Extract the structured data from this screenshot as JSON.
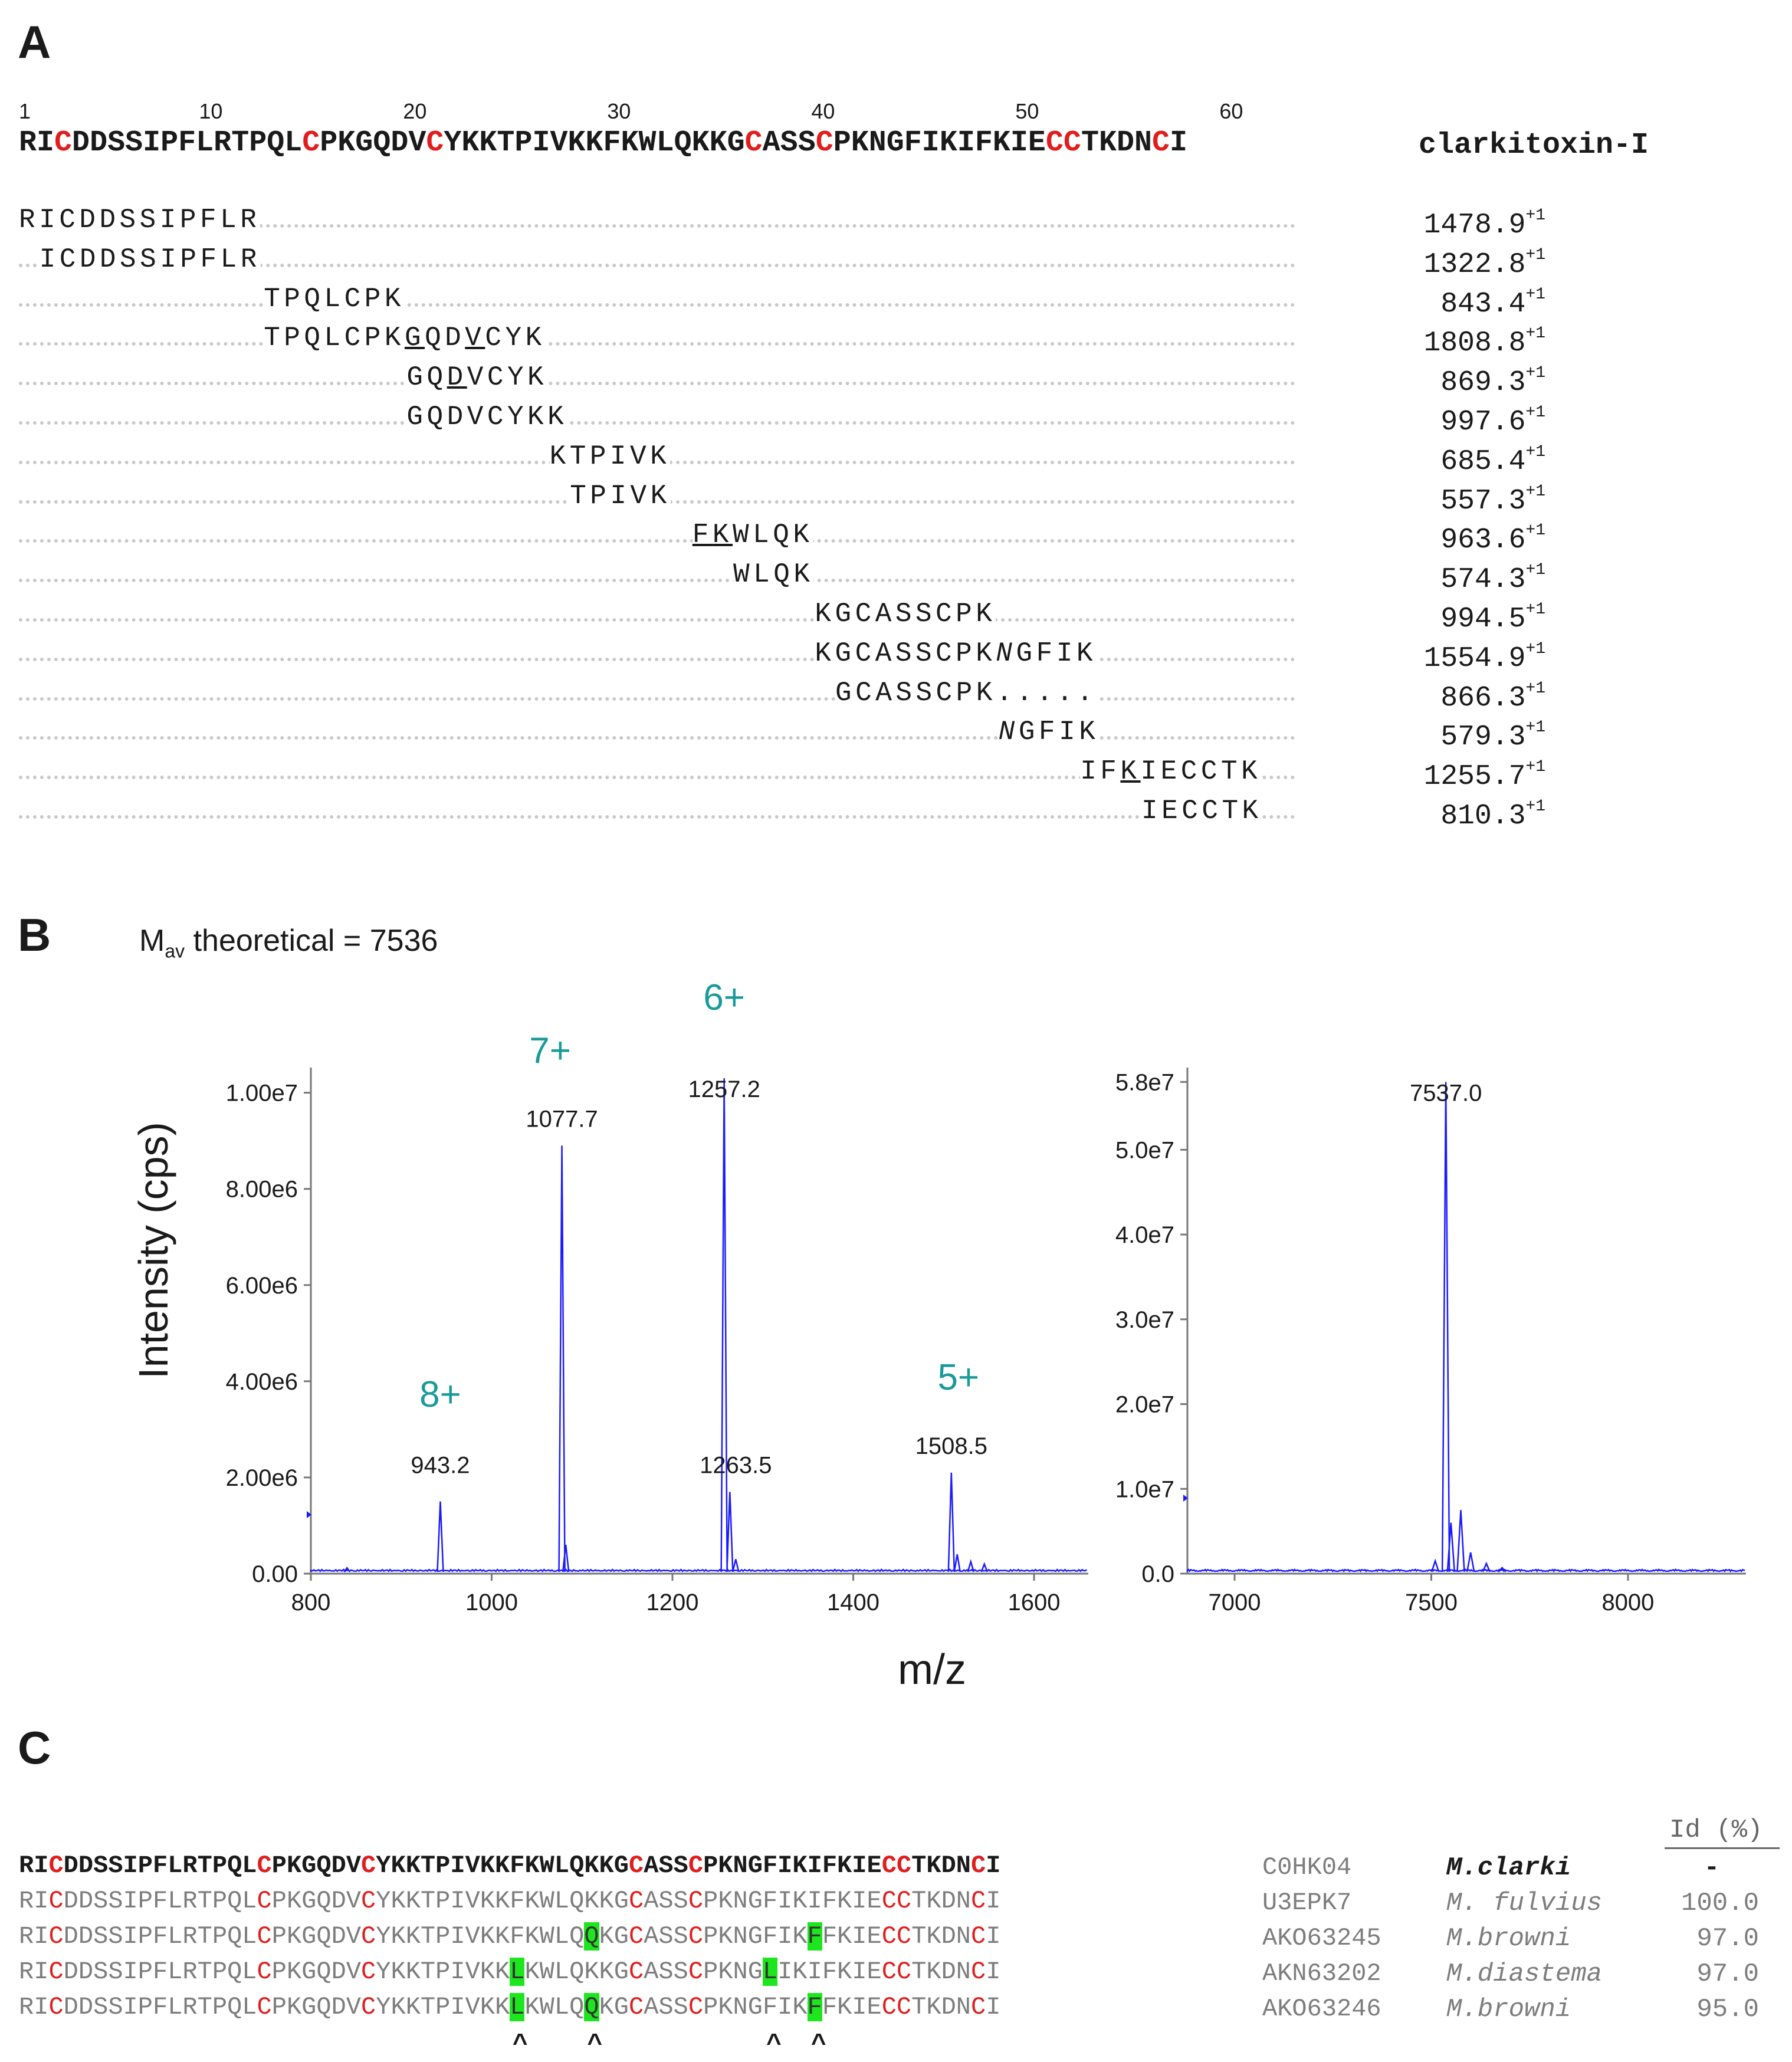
{
  "panelA": {
    "letter": "A",
    "position_labels": [
      "1",
      "10",
      "20",
      "30",
      "40",
      "50",
      "60"
    ],
    "toxin_name": "clarkitoxin-I",
    "full_sequence": "RICDDSSIPFLRTPQLCPKGQDVCYKKTPIVKKFKWLQKKGCASSCPKNGFIKIFKIECCTKDNCI",
    "peptides": [
      {
        "text": "RICDDSSIPFLR",
        "mass": "1478.9",
        "charge": "+1"
      },
      {
        "text": "ICDDSSIPFLR",
        "mass": "1322.8",
        "charge": "+1"
      },
      {
        "text": "TPQLCPK",
        "mass": "843.4",
        "charge": "+1"
      },
      {
        "text": "TPQLCPKGQDVCYK",
        "mass": "1808.8",
        "charge": "+1"
      },
      {
        "text": "GQDVCYK",
        "mass": "869.3",
        "charge": "+1"
      },
      {
        "text": "GQDVCYKK",
        "mass": "997.6",
        "charge": "+1"
      },
      {
        "text": "KTPIVK",
        "mass": "685.4",
        "charge": "+1"
      },
      {
        "text": "TPIVK",
        "mass": "557.3",
        "charge": "+1"
      },
      {
        "text": "FKWLQK",
        "mass": "963.6",
        "charge": "+1"
      },
      {
        "text": "WLQK",
        "mass": "574.3",
        "charge": "+1"
      },
      {
        "text": "KGCASSCPK",
        "mass": "994.5",
        "charge": "+1"
      },
      {
        "text": "KGCASSCPKNGFIK",
        "mass": "1554.9",
        "charge": "+1"
      },
      {
        "text": "GCASSCPK.....",
        "mass": "866.3",
        "charge": "+1"
      },
      {
        "text": "NGFIK",
        "mass": "579.3",
        "charge": "+1"
      },
      {
        "text": "IFKIECCTK",
        "mass": "1255.7",
        "charge": "+1"
      },
      {
        "text": "IECCTK",
        "mass": "810.3",
        "charge": "+1"
      }
    ]
  },
  "panelB": {
    "letter": "B",
    "mav_prefix": "M",
    "mav_sub": "av",
    "mav_rest": " theoretical = 7536",
    "ylabel": "Intensity (cps)",
    "xlabel": "m/z",
    "charge_labels": [
      "8+",
      "7+",
      "6+",
      "5+"
    ],
    "peak_labels": [
      "943.2",
      "1077.7",
      "1257.2",
      "1263.5",
      "1508.5",
      "7537.0"
    ]
  },
  "chart_data": [
    {
      "type": "line",
      "title": "",
      "xlabel": "m/z",
      "ylabel": "Intensity (cps)",
      "xlim": [
        800,
        1660
      ],
      "ylim": [
        0,
        10400000
      ],
      "xticks": [
        "800",
        "1000",
        "1200",
        "1400",
        "1600"
      ],
      "yticks": [
        "0.00",
        "2.00e6",
        "4.00e6",
        "6.00e6",
        "8.00e6",
        "1.00e7"
      ],
      "yticks_values": [
        0,
        2000000,
        4000000,
        6000000,
        8000000,
        10000000
      ],
      "xticks_values": [
        800,
        1000,
        1200,
        1400,
        1600
      ],
      "peaks": [
        {
          "x": 840,
          "y": 120000
        },
        {
          "x": 943.2,
          "y": 1500000
        },
        {
          "x": 1077.7,
          "y": 8900000
        },
        {
          "x": 1082,
          "y": 600000
        },
        {
          "x": 1257.2,
          "y": 10300000
        },
        {
          "x": 1263.5,
          "y": 1700000
        },
        {
          "x": 1270,
          "y": 300000
        },
        {
          "x": 1508.5,
          "y": 2100000
        },
        {
          "x": 1515,
          "y": 400000
        },
        {
          "x": 1530,
          "y": 250000
        },
        {
          "x": 1545,
          "y": 200000
        }
      ],
      "charge_states": [
        {
          "label": "8+",
          "x": 943.2
        },
        {
          "label": "7+",
          "x": 1077.7
        },
        {
          "label": "6+",
          "x": 1257.2
        },
        {
          "label": "5+",
          "x": 1508.5
        }
      ]
    },
    {
      "type": "line",
      "title": "",
      "xlabel": "m/z",
      "ylabel": "",
      "xlim": [
        6880,
        8300
      ],
      "ylim": [
        0,
        59000000
      ],
      "xticks": [
        "7000",
        "7500",
        "8000"
      ],
      "xticks_values": [
        7000,
        7500,
        8000
      ],
      "yticks": [
        "0.0",
        "1.0e7",
        "2.0e7",
        "3.0e7",
        "4.0e7",
        "5.0e7",
        "5.8e7"
      ],
      "yticks_values": [
        0,
        10000000,
        20000000,
        30000000,
        40000000,
        50000000,
        58000000
      ],
      "peaks": [
        {
          "x": 7510,
          "y": 1500000
        },
        {
          "x": 7537.0,
          "y": 58000000
        },
        {
          "x": 7550,
          "y": 6000000
        },
        {
          "x": 7575,
          "y": 7500000
        },
        {
          "x": 7600,
          "y": 2500000
        },
        {
          "x": 7640,
          "y": 1200000
        },
        {
          "x": 7680,
          "y": 700000
        }
      ]
    }
  ],
  "panelC": {
    "letter": "C",
    "id_header": "Id (%)",
    "rows": [
      {
        "sequence": "RICDDSSIPFLRTPQLCPKGQDVCYKKTPIVKKFKWLQKKGCASSCPKNGFIKIFKIECCTKDNCI",
        "accession": "C0HK04",
        "species": "M.clarki",
        "identity": "-"
      },
      {
        "sequence": "RICDDSSIPFLRTPQLCPKGQDVCYKKTPIVKKFKWLQKKGCASSCPKNGFIKIFKIECCTKDNCI",
        "accession": "U3EPK7",
        "species": "M. fulvius",
        "identity": "100.0"
      },
      {
        "sequence": "RICDDSSIPFLRTPQLCPKGQDVCYKKTPIVKKFKWLQQKGCASSCPKNGFIKFFKIECCTKDNCI",
        "accession": "AKO63245",
        "species": "M.browni",
        "identity": "97.0"
      },
      {
        "sequence": "RICDDSSIPFLRTPQLCPKGQDVCYKKTPIVKKLKWLQKKGCASSCPKNGLIKIFKIECCTKDNCI",
        "accession": "AKN63202",
        "species": "M.diastema",
        "identity": "97.0"
      },
      {
        "sequence": "RICDDSSIPFLRTPQLCPKGQDVCYKKTPIVKKLKWLQQKGCASSCPKNGFIKFFKIECCTKDNCI",
        "accession": "AKO63246",
        "species": "M.browni",
        "identity": "95.0"
      }
    ],
    "carets": [
      "^",
      "^",
      "^",
      "^"
    ]
  },
  "colors": {
    "cys": "#e01e1e",
    "teal": "#1a9a9a",
    "spectrum": "#1a1aff",
    "highlight": "#1ee61e"
  }
}
